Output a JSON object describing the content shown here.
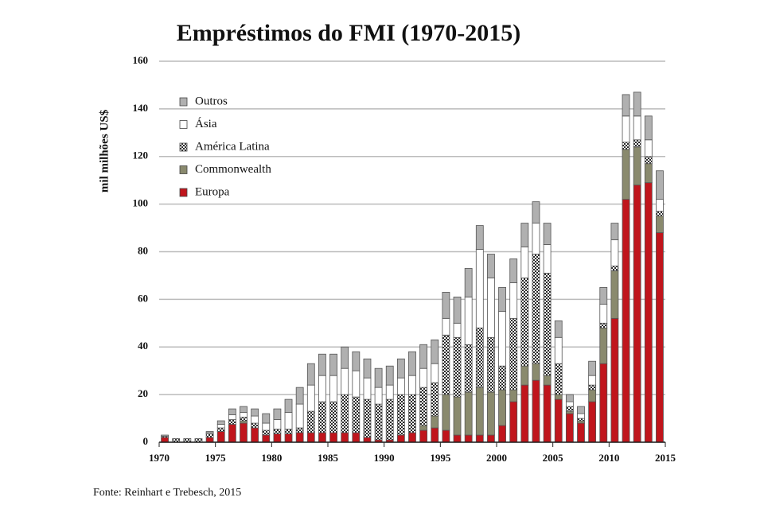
{
  "chart_data": {
    "type": "stacked_bar",
    "title": "Empréstimos do FMI (1970-2015)",
    "y_label": "mil milhões US$",
    "source": "Fonte: Reinhart e Trebesch, 2015",
    "x": [
      1970,
      1971,
      1972,
      1973,
      1974,
      1975,
      1976,
      1977,
      1978,
      1979,
      1980,
      1981,
      1982,
      1983,
      1984,
      1985,
      1986,
      1987,
      1988,
      1989,
      1990,
      1991,
      1992,
      1993,
      1994,
      1995,
      1996,
      1997,
      1998,
      1999,
      2000,
      2001,
      2002,
      2003,
      2004,
      2005,
      2006,
      2007,
      2008,
      2009,
      2010,
      2011,
      2012,
      2013,
      2014
    ],
    "series": [
      {
        "name": "Europa",
        "color": "#c0151c",
        "values": [
          2,
          0,
          0,
          0,
          2,
          4.5,
          7.5,
          8,
          6,
          3,
          3.5,
          3.5,
          4,
          4,
          4,
          4,
          4,
          4,
          2,
          1,
          1,
          3,
          4,
          5,
          6,
          5,
          3,
          3,
          3,
          3,
          7,
          17,
          24,
          26,
          24,
          18,
          12,
          8,
          17,
          33,
          52,
          102,
          108,
          109,
          88
        ]
      },
      {
        "name": "Commonwealth",
        "color": "#8a8a6e",
        "values": [
          0,
          0,
          0,
          0,
          0,
          0,
          0,
          1,
          0,
          0,
          0,
          0,
          0,
          0,
          0,
          0,
          0,
          0,
          0,
          0,
          0,
          0,
          0,
          2,
          5,
          15,
          16,
          18,
          20,
          18,
          15,
          5,
          8,
          7,
          4,
          2,
          1,
          1,
          5,
          15,
          20,
          21,
          16,
          8,
          7
        ]
      },
      {
        "name": "América Latina",
        "color": "#2b2b2b",
        "pattern": true,
        "values": [
          0.5,
          1.5,
          1.5,
          1.5,
          1.5,
          1.5,
          2,
          1.5,
          2,
          2,
          2,
          2,
          2,
          9,
          13,
          13,
          16,
          15,
          16,
          15,
          17,
          17,
          16,
          16,
          14,
          25,
          25,
          20,
          25,
          23,
          10,
          30,
          37,
          46,
          43,
          13,
          2,
          1,
          2,
          2,
          2,
          3,
          3,
          3,
          2
        ]
      },
      {
        "name": "Ásia",
        "color": "#ffffff",
        "values": [
          0,
          0,
          0,
          0,
          0.5,
          1.5,
          2,
          2,
          3,
          3,
          4,
          7,
          10,
          11,
          11,
          11,
          11,
          11,
          9,
          7,
          6,
          7,
          8,
          8,
          8,
          7,
          6,
          20,
          33,
          25,
          23,
          15,
          13,
          13,
          12,
          11,
          2,
          2,
          4,
          8,
          11,
          11,
          10,
          7,
          5
        ]
      },
      {
        "name": "Outros",
        "color": "#b0b0b0",
        "values": [
          0.5,
          0,
          0,
          0,
          0.5,
          1.5,
          2.5,
          2.5,
          3,
          4,
          4.5,
          5.5,
          7,
          9,
          9,
          9,
          9,
          8,
          8,
          8,
          8,
          8,
          10,
          10,
          10,
          11,
          11,
          12,
          10,
          10,
          10,
          10,
          10,
          9,
          9,
          7,
          3,
          3,
          6,
          7,
          7,
          9,
          10,
          10,
          12
        ]
      }
    ],
    "xlim": [
      1970,
      2015
    ],
    "xticks": [
      1970,
      1975,
      1980,
      1985,
      1990,
      1995,
      2000,
      2005,
      2010,
      2015
    ],
    "ylim": [
      0,
      160
    ],
    "yticks": [
      0,
      20,
      40,
      60,
      80,
      100,
      120,
      140,
      160
    ],
    "grid": true,
    "legend": "top-left"
  }
}
